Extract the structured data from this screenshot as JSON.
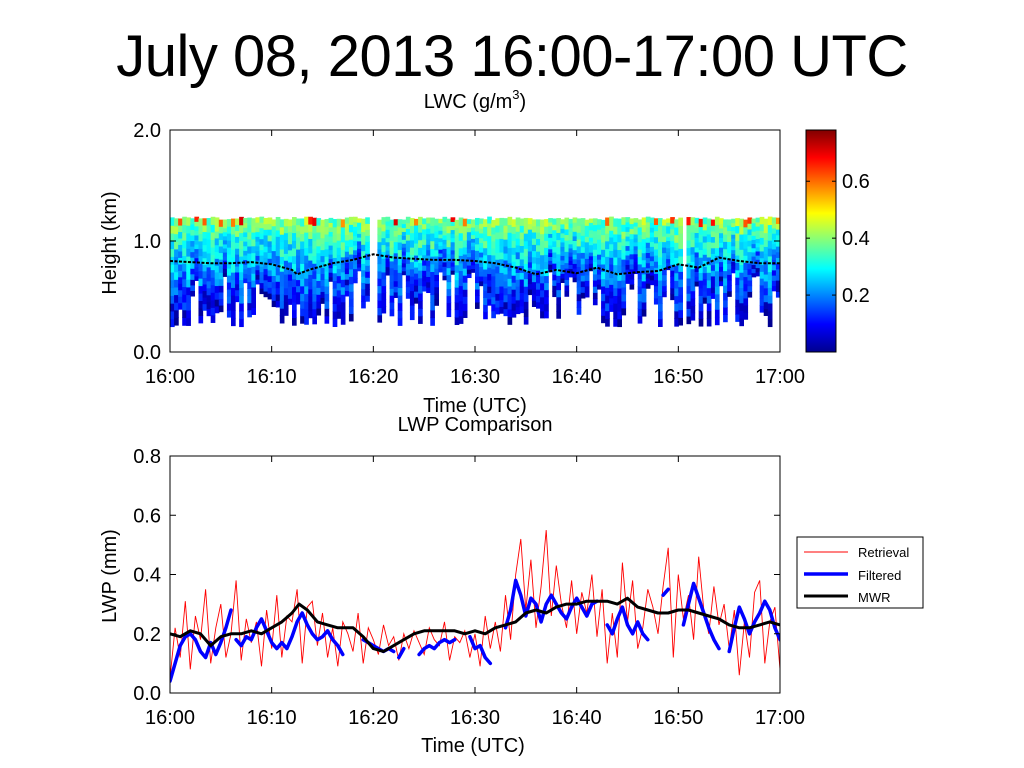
{
  "slide_title": "July 08, 2013 16:00-17:00 UTC",
  "chart_data": [
    {
      "type": "heatmap",
      "title": "LWC (g/m³)",
      "title_prefix": "LWC (g/m",
      "title_superscript": "3",
      "title_suffix": ")",
      "xlabel": "Time (UTC)",
      "ylabel": "Height (km)",
      "x_ticks": [
        "16:00",
        "16:10",
        "16:20",
        "16:30",
        "16:40",
        "16:50",
        "17:00"
      ],
      "x_range_minutes": [
        0,
        60
      ],
      "y_ticks": [
        "0.0",
        "1.0",
        "2.0"
      ],
      "ylim": [
        0,
        2.0
      ],
      "cloud_top_km": 1.22,
      "cloud_base_km_range": [
        0.23,
        0.75
      ],
      "colorbar": {
        "range": [
          0,
          0.78
        ],
        "ticks": [
          "0.2",
          "0.4",
          "0.6"
        ],
        "tick_values": [
          0.2,
          0.4,
          0.6
        ],
        "colormap": "jet"
      },
      "overlay_series": {
        "name": "cloud base",
        "color": "#000000",
        "x_minutes": [
          0,
          2,
          4,
          6,
          8,
          10,
          12,
          12.5,
          14,
          16,
          18,
          20,
          22,
          24,
          26,
          28,
          30,
          32,
          34,
          36,
          38,
          40,
          42,
          44,
          46,
          48,
          50,
          52,
          54,
          56,
          58,
          60
        ],
        "height_km": [
          0.82,
          0.81,
          0.8,
          0.8,
          0.81,
          0.79,
          0.74,
          0.7,
          0.75,
          0.8,
          0.83,
          0.88,
          0.85,
          0.84,
          0.83,
          0.83,
          0.82,
          0.8,
          0.76,
          0.7,
          0.74,
          0.71,
          0.76,
          0.7,
          0.72,
          0.73,
          0.79,
          0.76,
          0.85,
          0.82,
          0.8,
          0.8
        ]
      }
    },
    {
      "type": "line",
      "title": "LWP Comparison",
      "xlabel": "Time (UTC)",
      "ylabel": "LWP (mm)",
      "x_ticks": [
        "16:00",
        "16:10",
        "16:20",
        "16:30",
        "16:40",
        "16:50",
        "17:00"
      ],
      "x_range_minutes": [
        0,
        60
      ],
      "y_ticks": [
        "0.0",
        "0.2",
        "0.4",
        "0.6",
        "0.8"
      ],
      "ylim": [
        0,
        0.8
      ],
      "legend_position": "right",
      "series": [
        {
          "name": "Retrieval",
          "color": "#ff0000",
          "x_minutes": [
            0,
            0.5,
            1,
            1.5,
            2,
            2.5,
            3,
            3.5,
            4,
            4.5,
            5,
            5.5,
            6,
            6.5,
            7,
            7.5,
            8,
            8.5,
            9,
            9.5,
            10,
            10.5,
            11,
            11.5,
            12,
            12.5,
            13,
            13.5,
            14,
            14.5,
            15,
            15.5,
            16,
            16.5,
            17,
            17.5,
            18,
            18.5,
            19,
            19.5,
            20,
            20.5,
            21,
            21.5,
            22,
            22.5,
            23,
            23.5,
            24,
            24.5,
            25,
            25.5,
            26,
            26.5,
            27,
            27.5,
            28,
            28.5,
            29,
            29.5,
            30,
            30.5,
            31,
            31.5,
            32,
            32.5,
            33,
            33.5,
            34,
            34.5,
            35,
            35.5,
            36,
            36.5,
            37,
            37.5,
            38,
            38.5,
            39,
            39.5,
            40,
            40.5,
            41,
            41.5,
            42,
            42.5,
            43,
            43.5,
            44,
            44.5,
            45,
            45.5,
            46,
            46.5,
            47,
            47.5,
            48,
            48.5,
            49,
            49.5,
            50,
            50.5,
            51,
            51.5,
            52,
            52.5,
            53,
            53.5,
            54,
            54.5,
            55,
            55.5,
            56,
            56.5,
            57,
            57.5,
            58,
            58.5,
            59,
            59.5,
            60
          ],
          "values": [
            0.05,
            0.22,
            0.12,
            0.31,
            0.08,
            0.26,
            0.18,
            0.35,
            0.1,
            0.22,
            0.3,
            0.12,
            0.2,
            0.38,
            0.11,
            0.25,
            0.17,
            0.24,
            0.09,
            0.28,
            0.15,
            0.33,
            0.12,
            0.26,
            0.24,
            0.35,
            0.1,
            0.29,
            0.31,
            0.16,
            0.27,
            0.12,
            0.22,
            0.09,
            0.24,
            0.2,
            0.14,
            0.27,
            0.1,
            0.22,
            0.18,
            0.13,
            0.23,
            0.16,
            0.19,
            0.11,
            0.2,
            0.15,
            0.21,
            0.17,
            0.13,
            0.22,
            0.18,
            0.16,
            0.24,
            0.11,
            0.19,
            0.17,
            0.21,
            0.12,
            0.2,
            0.09,
            0.26,
            0.15,
            0.24,
            0.14,
            0.33,
            0.18,
            0.4,
            0.52,
            0.28,
            0.45,
            0.22,
            0.36,
            0.55,
            0.26,
            0.43,
            0.3,
            0.22,
            0.38,
            0.2,
            0.34,
            0.27,
            0.4,
            0.19,
            0.35,
            0.1,
            0.27,
            0.12,
            0.44,
            0.24,
            0.38,
            0.15,
            0.22,
            0.35,
            0.29,
            0.2,
            0.36,
            0.49,
            0.12,
            0.4,
            0.25,
            0.33,
            0.18,
            0.46,
            0.28,
            0.2,
            0.36,
            0.23,
            0.3,
            0.15,
            0.28,
            0.06,
            0.24,
            0.12,
            0.34,
            0.38,
            0.1,
            0.24,
            0.29,
            0.08
          ]
        },
        {
          "name": "Filtered",
          "color": "#0000ff",
          "segments": [
            {
              "x_minutes": [
                0,
                0.5,
                1,
                1.5,
                2,
                2.5,
                3,
                3.5,
                4,
                4.5,
                5,
                5.5,
                6
              ],
              "values": [
                0.04,
                0.1,
                0.16,
                0.19,
                0.2,
                0.18,
                0.14,
                0.12,
                0.17,
                0.13,
                0.17,
                0.22,
                0.28
              ]
            },
            {
              "x_minutes": [
                6.5,
                7,
                7.5,
                8,
                8.5,
                9,
                9.5,
                10,
                10.5,
                11,
                11.5,
                12,
                12.5,
                13,
                13.5,
                14,
                14.5,
                15,
                15.5,
                16,
                16.5,
                17
              ],
              "values": [
                0.18,
                0.16,
                0.19,
                0.18,
                0.22,
                0.25,
                0.21,
                0.17,
                0.15,
                0.17,
                0.15,
                0.19,
                0.24,
                0.27,
                0.23,
                0.2,
                0.18,
                0.19,
                0.21,
                0.18,
                0.16,
                0.13
              ]
            },
            {
              "x_minutes": [
                19,
                19.5,
                20,
                20.5,
                21,
                21.5,
                22
              ],
              "values": [
                0.18,
                0.17,
                0.16,
                0.15,
                0.14,
                0.15,
                0.14
              ]
            },
            {
              "x_minutes": [
                22.5,
                23
              ],
              "values": [
                0.12,
                0.15
              ]
            },
            {
              "x_minutes": [
                24.5,
                25,
                25.5,
                26,
                26.5,
                27,
                27.5,
                28
              ],
              "values": [
                0.13,
                0.15,
                0.16,
                0.15,
                0.17,
                0.18,
                0.17,
                0.18
              ]
            },
            {
              "x_minutes": [
                29.5,
                30,
                30.5,
                31,
                31.5
              ],
              "values": [
                0.19,
                0.15,
                0.16,
                0.12,
                0.1
              ]
            },
            {
              "x_minutes": [
                33,
                33.5,
                34,
                34.5,
                35,
                35.5,
                36,
                36.5,
                37,
                37.5,
                38,
                38.5,
                39,
                39.5,
                40,
                40.5,
                41,
                41.5,
                42
              ],
              "values": [
                0.22,
                0.28,
                0.38,
                0.33,
                0.26,
                0.32,
                0.3,
                0.24,
                0.3,
                0.33,
                0.3,
                0.27,
                0.25,
                0.29,
                0.32,
                0.29,
                0.26,
                0.3,
                0.31
              ]
            },
            {
              "x_minutes": [
                43,
                43.5,
                44,
                44.5,
                45,
                45.5,
                46,
                46.5,
                47
              ],
              "values": [
                0.23,
                0.2,
                0.25,
                0.29,
                0.23,
                0.2,
                0.24,
                0.2,
                0.18
              ]
            },
            {
              "x_minutes": [
                48.5,
                49
              ],
              "values": [
                0.33,
                0.35
              ]
            },
            {
              "x_minutes": [
                50.5,
                51,
                51.5,
                52,
                52.5,
                53,
                53.5,
                54
              ],
              "values": [
                0.23,
                0.3,
                0.37,
                0.32,
                0.27,
                0.22,
                0.18,
                0.15
              ]
            },
            {
              "x_minutes": [
                55,
                55.5,
                56,
                56.5,
                57,
                57.5,
                58,
                58.5,
                59,
                59.5,
                60
              ],
              "values": [
                0.14,
                0.22,
                0.29,
                0.25,
                0.2,
                0.24,
                0.27,
                0.31,
                0.28,
                0.22,
                0.18
              ]
            }
          ]
        },
        {
          "name": "MWR",
          "color": "#000000",
          "x_minutes": [
            0,
            1,
            2,
            3,
            4,
            5,
            6,
            7,
            8,
            9,
            10,
            11,
            12,
            12.7,
            13.5,
            14.5,
            15.5,
            16.5,
            18,
            19,
            20,
            21,
            22,
            23,
            24,
            25,
            26,
            27,
            28,
            29,
            30,
            31,
            32,
            33,
            34,
            35,
            36,
            37,
            38,
            39,
            40,
            41,
            42,
            43,
            44,
            45,
            46,
            47,
            48,
            49,
            50,
            51,
            52,
            53,
            54,
            55,
            56,
            57,
            58,
            59,
            60
          ],
          "values": [
            0.2,
            0.19,
            0.21,
            0.2,
            0.16,
            0.19,
            0.2,
            0.2,
            0.21,
            0.2,
            0.22,
            0.24,
            0.27,
            0.3,
            0.28,
            0.24,
            0.23,
            0.22,
            0.22,
            0.19,
            0.15,
            0.14,
            0.16,
            0.18,
            0.2,
            0.21,
            0.21,
            0.21,
            0.21,
            0.2,
            0.21,
            0.2,
            0.22,
            0.23,
            0.24,
            0.27,
            0.28,
            0.27,
            0.29,
            0.3,
            0.3,
            0.31,
            0.31,
            0.31,
            0.3,
            0.32,
            0.29,
            0.28,
            0.27,
            0.27,
            0.28,
            0.28,
            0.27,
            0.26,
            0.25,
            0.23,
            0.22,
            0.22,
            0.23,
            0.24,
            0.23
          ]
        }
      ]
    }
  ]
}
